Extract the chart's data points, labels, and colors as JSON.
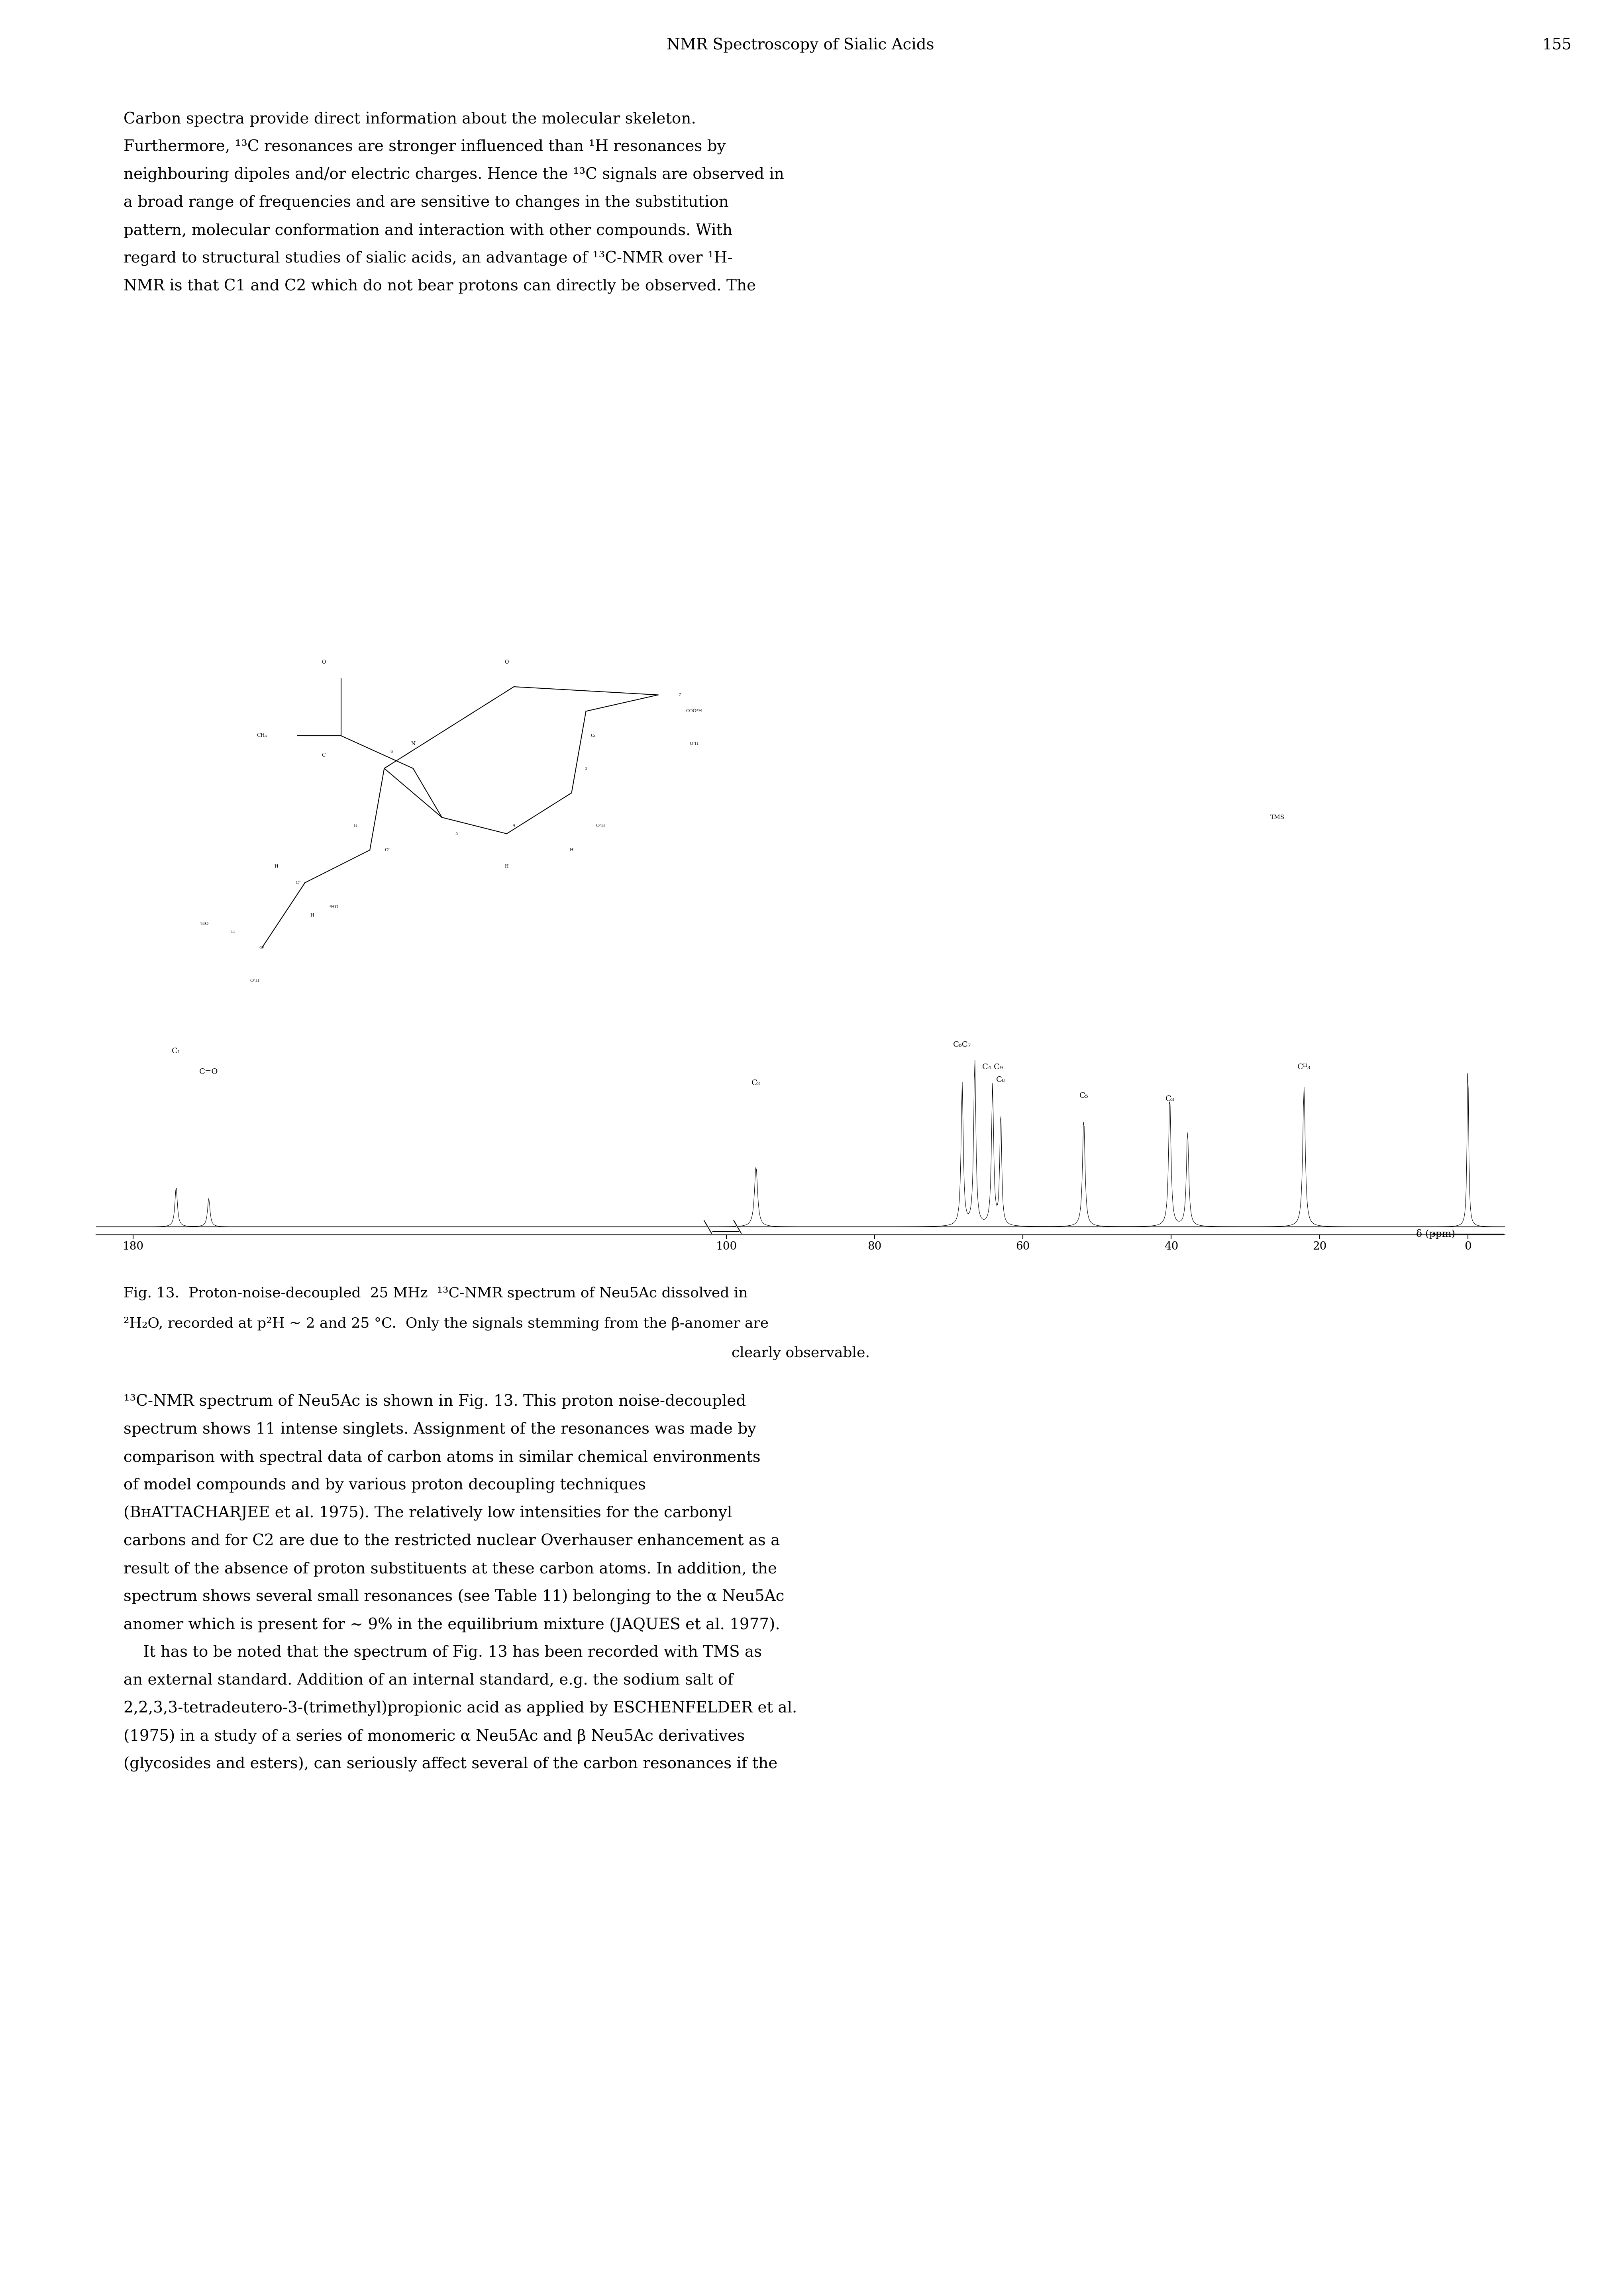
{
  "page_title": "NMR Spectroscopy of Sialic Acids",
  "page_number": "155",
  "background_color": "#ffffff",
  "text_color": "#000000",
  "para1": "Carbon spectra provide direct information about the molecular skeleton. Furthermore, ¹³C resonances are stronger influenced than ¹H resonances by neighbouring dipoles and/or electric charges. Hence the ¹³C signals are observed in a broad range of frequencies and are sensitive to changes in the substitution pattern, molecular conformation and interaction with other compounds. With regard to structural studies of sialic acids, an advantage of ¹³C-NMR over ¹H-NMR is that C1 and C2 which do not bear protons can directly be observed. The",
  "fig_caption_line1": "Fig. 13.  Proton-noise-decoupled  25 MHz  ¹³C-NMR spectrum of Neu5Ac dissolved in",
  "fig_caption_line2": "²H₂O, recorded at p²H ∼ 2 and 25 °C.  Only the signals stemming from the β-anomer are",
  "fig_caption_line3": "clearly observable.",
  "para2_line1": "¹³C-NMR spectrum of Neu5Ac is shown in Fig. 13. This proton noise-decoupled",
  "para2_line2": "spectrum shows 11 intense singlets. Assignment of the resonances was made by",
  "para2_line3": "comparison with spectral data of carbon atoms in similar chemical environments",
  "para2_line4": "of model compounds and by various proton decoupling techniques",
  "para2_line5": "(BʜATTACHARJEE et al. 1975). The relatively low intensities for the carbonyl",
  "para2_line6": "carbons and for C2 are due to the restricted nuclear Overhauser enhancement as a",
  "para2_line7": "result of the absence of proton substituents at these carbon atoms. In addition, the",
  "para2_line8": "spectrum shows several small resonances (see Table 11) belonging to the α Neu5Ac",
  "para2_line9": "anomer which is present for ∼ 9% in the equilibrium mixture (JAQUES et al. 1977).",
  "para2_line10": "    It has to be noted that the spectrum of Fig. 13 has been recorded with TMS as",
  "para2_line11": "an external standard. Addition of an internal standard, e.g. the sodium salt of",
  "para2_line12": "2,2,3,3-tetradeutero-3-(trimethyl)propionic acid as applied by ESCHENFELDER et al.",
  "para2_line13": "(1975) in a study of a series of monomeric α Neu5Ac and β Neu5Ac derivatives",
  "para2_line14": "(glycosides and esters), can seriously affect several of the carbon resonances if the"
}
